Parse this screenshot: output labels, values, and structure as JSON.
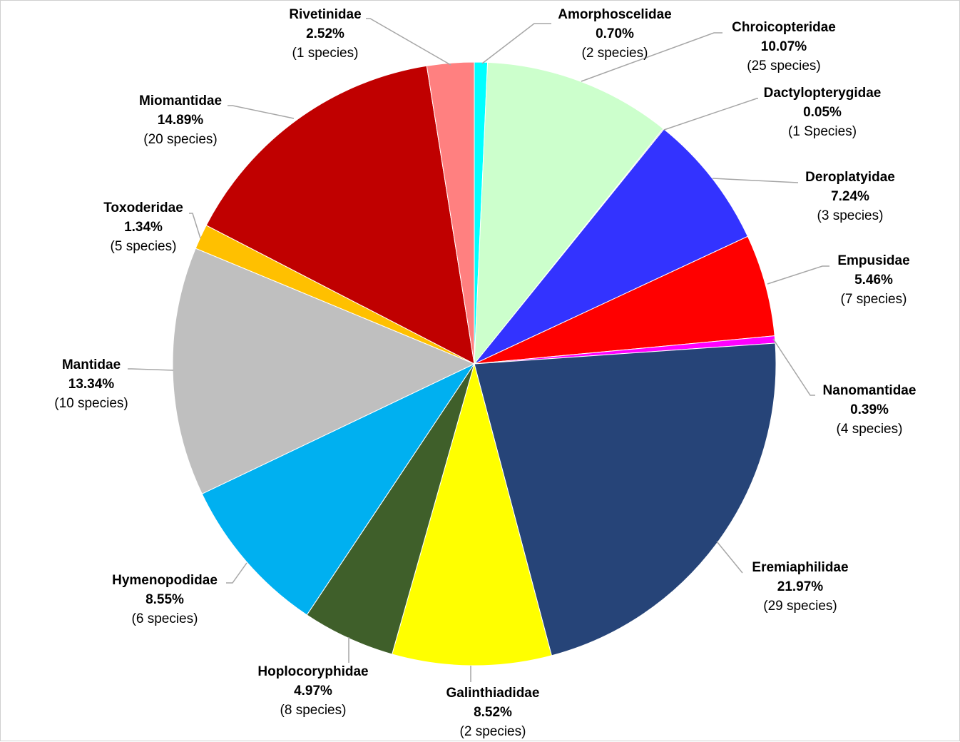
{
  "chart_data": {
    "type": "pie",
    "title": "",
    "slices": [
      {
        "name": "Amorphoscelidae",
        "pct_label": "0.70%",
        "count_label": "(2 species)",
        "value": 0.7,
        "color": "#00FFFF"
      },
      {
        "name": "Chroicopteridae",
        "pct_label": "10.07%",
        "count_label": "(25 species)",
        "value": 10.07,
        "color": "#CCFFCC"
      },
      {
        "name": "Dactylopterygidae",
        "pct_label": "0.05%",
        "count_label": "(1 Species)",
        "value": 0.05,
        "color": "#A6A6A6"
      },
      {
        "name": "Deroplatyidae",
        "pct_label": "7.24%",
        "count_label": "(3 species)",
        "value": 7.24,
        "color": "#3333FF"
      },
      {
        "name": "Empusidae",
        "pct_label": "5.46%",
        "count_label": "(7 species)",
        "value": 5.46,
        "color": "#FF0000"
      },
      {
        "name": "Nanomantidae",
        "pct_label": "0.39%",
        "count_label": "(4 species)",
        "value": 0.39,
        "color": "#FF00FF"
      },
      {
        "name": "Eremiaphilidae",
        "pct_label": "21.97%",
        "count_label": "(29 species)",
        "value": 21.97,
        "color": "#264478"
      },
      {
        "name": "Galinthiadidae",
        "pct_label": "8.52%",
        "count_label": "(2 species)",
        "value": 8.52,
        "color": "#FFFF00"
      },
      {
        "name": "Hoplocoryphidae",
        "pct_label": "4.97%",
        "count_label": "(8 species)",
        "value": 4.97,
        "color": "#3F5F2A"
      },
      {
        "name": "Hymenopodidae",
        "pct_label": "8.55%",
        "count_label": "(6 species)",
        "value": 8.55,
        "color": "#00B0F0"
      },
      {
        "name": "Mantidae",
        "pct_label": "13.34%",
        "count_label": "(10 species)",
        "value": 13.34,
        "color": "#BFBFBF"
      },
      {
        "name": "Toxoderidae",
        "pct_label": "1.34%",
        "count_label": "(5 species)",
        "value": 1.34,
        "color": "#FFC000"
      },
      {
        "name": "Miomantidae",
        "pct_label": "14.89%",
        "count_label": "(20 species)",
        "value": 14.89,
        "color": "#C00000"
      },
      {
        "name": "Rivetinidae",
        "pct_label": "2.52%",
        "count_label": "(1 species)",
        "value": 2.52,
        "color": "#FF8080"
      }
    ],
    "start_angle_deg": 0,
    "direction": "clockwise",
    "leader_line_color": "#A6A6A6",
    "legend": "none"
  }
}
